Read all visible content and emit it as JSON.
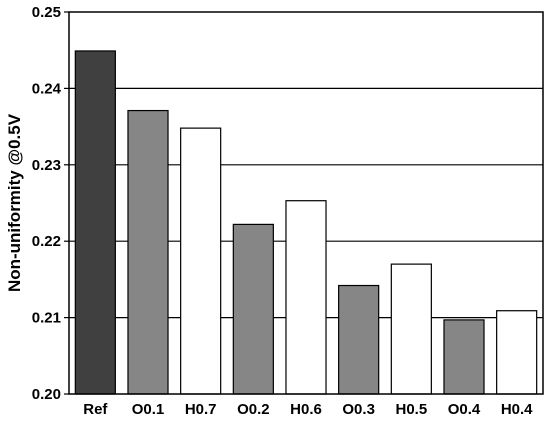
{
  "chart_data": {
    "type": "bar",
    "title": "",
    "xlabel": "",
    "ylabel": "Non-uniformity @0.5V",
    "ylim": [
      0.2,
      0.25
    ],
    "yticks": [
      0.2,
      0.21,
      0.22,
      0.23,
      0.24,
      0.25
    ],
    "ytick_labels": [
      "0.20",
      "0.21",
      "0.22",
      "0.23",
      "0.24",
      "0.25"
    ],
    "grid": "horizontal",
    "legend": "none",
    "categories": [
      "Ref",
      "O0.1",
      "H0.7",
      "O0.2",
      "H0.6",
      "O0.3",
      "H0.5",
      "O0.4",
      "H0.4"
    ],
    "values": [
      0.2449,
      0.2371,
      0.2348,
      0.2222,
      0.2253,
      0.2142,
      0.217,
      0.2097,
      0.2109
    ],
    "bar_colors": [
      "#404040",
      "#868686",
      "#ffffff",
      "#868686",
      "#ffffff",
      "#868686",
      "#ffffff",
      "#868686",
      "#ffffff"
    ]
  }
}
